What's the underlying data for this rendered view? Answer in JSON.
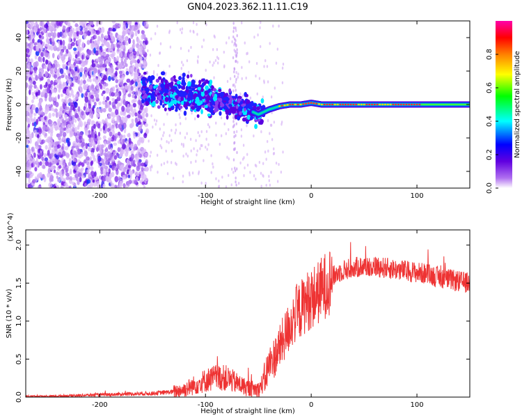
{
  "figure": {
    "title": "GN04.2023.362.11.11.C19"
  },
  "chart_data": [
    {
      "type": "heatmap",
      "title": "GN04.2023.362.11.11.C19",
      "xlabel": "Height of straight line (km)",
      "ylabel": "Frequency (Hz)",
      "xlim": [
        -270,
        150
      ],
      "ylim": [
        -50,
        50
      ],
      "x_ticks": [
        -200,
        -100,
        0,
        100
      ],
      "y_ticks": [
        -40,
        -20,
        0,
        20,
        40
      ],
      "colorbar": {
        "label": "Normalized spectral amplitude",
        "range": [
          0,
          1
        ],
        "ticks": [
          "0.0",
          "0.2",
          "0.4",
          "0.6",
          "0.8"
        ],
        "colors": [
          "#ffffff",
          "#8a2be2",
          "#0000ff",
          "#00ffff",
          "#00ff00",
          "#ffff00",
          "#ff8000",
          "#ff0000",
          "#ff00aa"
        ]
      },
      "ridge": {
        "x": [
          -160,
          -140,
          -120,
          -100,
          -80,
          -60,
          -50,
          -40,
          -30,
          -20,
          -10,
          0,
          10,
          50,
          100,
          150
        ],
        "y": [
          8,
          7,
          6,
          4,
          1,
          -3,
          -6,
          -3,
          -1,
          0,
          0,
          1,
          0,
          0,
          0,
          0
        ]
      }
    },
    {
      "type": "line",
      "xlabel": "Height of straight line (km)",
      "ylabel": "SNR (10 * v/v)",
      "y_multiplier": "(x10^4)",
      "xlim": [
        -270,
        150
      ],
      "ylim": [
        0,
        2.2
      ],
      "x_ticks": [
        -200,
        -100,
        0,
        100
      ],
      "y_ticks": [
        "0.0",
        "0.5",
        "1.0",
        "1.5",
        "2.0"
      ],
      "color": "#ee3333",
      "series": [
        {
          "x": [
            -270,
            -250,
            -200,
            -150,
            -130,
            -120,
            -110,
            -100,
            -90,
            -80,
            -70,
            -60,
            -50,
            -45,
            -40,
            -35,
            -30,
            -25,
            -20,
            -15,
            -10,
            -5,
            0,
            5,
            10,
            15,
            20,
            25,
            30,
            40,
            50,
            60,
            70,
            80,
            90,
            100,
            110,
            120,
            130,
            140,
            150
          ],
          "y": [
            0.01,
            0.01,
            0.03,
            0.05,
            0.07,
            0.1,
            0.16,
            0.22,
            0.26,
            0.25,
            0.18,
            0.12,
            0.1,
            0.2,
            0.42,
            0.52,
            0.65,
            0.8,
            0.95,
            1.08,
            1.15,
            1.25,
            1.3,
            1.35,
            1.42,
            1.5,
            1.58,
            1.63,
            1.67,
            1.7,
            1.72,
            1.72,
            1.7,
            1.68,
            1.66,
            1.64,
            1.62,
            1.58,
            1.55,
            1.52,
            1.5
          ]
        }
      ]
    }
  ]
}
